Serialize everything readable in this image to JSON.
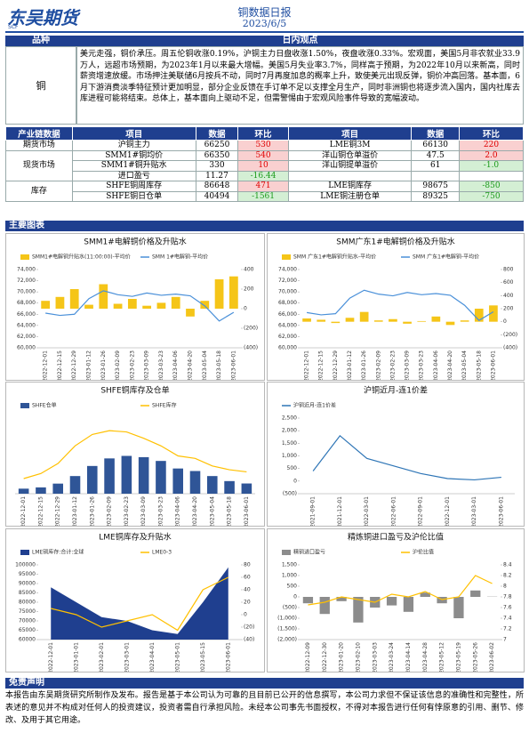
{
  "header": {
    "logo": "东吴期货",
    "logo_sub": "SCF",
    "title": "铜数据日报",
    "date": "2023/6/5"
  },
  "view": {
    "header": [
      "品种",
      "日内观点"
    ],
    "variety": "铜",
    "text": "美元走强，铜价承压。周五伦铜收涨0.19%，沪铜主力日盘收涨1.50%，夜盘收涨0.33%。宏观面，美国5月非农就业33.9万人，远超市场预期，为2023年1月以来最大增幅。美国5月失业率3.7%，同样高于预期，为2022年10月以来新高，同时薪资增速放缓。市场押注美联储6月按兵不动，同时7月再度加息的概率上升，致使美元出现反弹，铜价冲高回落。基本面，6月下游消费淡季特征预计更加明显，部分企业反馈在手订单不足以支撑全月生产，同时非洲铜也将逐步流入国内，国内社库去库进程可能将结束。总体上，基本面向上驱动不足，但需警惕由于宏观风险事件导致的宽幅波动。"
  },
  "table": {
    "header": [
      "产业链数据",
      "项目",
      "数据",
      "环比",
      "项目",
      "数据",
      "环比"
    ],
    "groups": [
      {
        "label": "期货市场",
        "rows": [
          [
            "沪铜主力",
            "66250",
            "530",
            "LME铜3M",
            "66130",
            "220"
          ]
        ]
      },
      {
        "label": "现货市场",
        "rows": [
          [
            "SMM1#铜均价",
            "66350",
            "540",
            "洋山铜仓单溢价",
            "47.5",
            "2.0"
          ],
          [
            "SMM1#铜升贴水",
            "330",
            "10",
            "洋山铜提单溢价",
            "61",
            "-1.0"
          ],
          [
            "进口盈亏",
            "11.27",
            "-16.44"
          ]
        ]
      },
      {
        "label": "库存",
        "rows": [
          [
            "SHFE铜周库存",
            "86648",
            "471",
            "LME铜库存",
            "98675",
            "-850"
          ],
          [
            "SHFE铜日仓单",
            "40494",
            "-1561",
            "LME铜注册仓单",
            "89325",
            "-750"
          ]
        ]
      }
    ]
  },
  "charts_heading": "主要图表",
  "chart_data": [
    {
      "type": "bar-line",
      "title": "SMM1#电解铜价格及升贴水",
      "categories": [
        "2022-12-01",
        "2022-12-15",
        "2022-12-29",
        "2023-01-12",
        "2023-01-26",
        "2023-02-09",
        "2023-02-23",
        "2023-03-09",
        "2023-03-23",
        "2023-04-06",
        "2023-04-20",
        "2023-05-04",
        "2023-05-18",
        "2023-06-01"
      ],
      "series": [
        {
          "name": "SMM1#电解铜升贴水(11:00:00)-平均价",
          "color": "#f5c518",
          "kind": "bar",
          "axis": "y2",
          "values": [
            80,
            120,
            200,
            40,
            250,
            50,
            100,
            30,
            60,
            120,
            -80,
            80,
            300,
            330
          ]
        },
        {
          "name": "SMM 1#电解铜-平均价",
          "color": "#4a90d9",
          "kind": "line",
          "axis": "y",
          "values": [
            66200,
            65800,
            66000,
            68800,
            70200,
            69500,
            69200,
            69800,
            69400,
            69600,
            69300,
            67500,
            64800,
            66350
          ]
        }
      ],
      "ylim": [
        60000,
        74000
      ],
      "yticks": [
        {
          "value": 60000,
          "label": "60,000"
        },
        {
          "value": 62000,
          "label": "62,000"
        },
        {
          "value": 64000,
          "label": "64,000"
        },
        {
          "value": 66000,
          "label": "66,000"
        },
        {
          "value": 68000,
          "label": "68,000"
        },
        {
          "value": 70000,
          "label": "70,000"
        },
        {
          "value": 72000,
          "label": "72,000"
        },
        {
          "value": 74000,
          "label": "74,000"
        }
      ],
      "y2lim": [
        -400,
        400
      ],
      "y2ticks": [
        {
          "value": -400,
          "label": "(400)"
        },
        {
          "value": -200,
          "label": "(200)"
        },
        0,
        200,
        400
      ]
    },
    {
      "type": "bar-line",
      "title": "SMM广东1#电解铜价格及升贴水",
      "categories": [
        "2022-12-01",
        "2022-12-15",
        "2022-12-29",
        "2023-01-12",
        "2023-01-26",
        "2023-02-09",
        "2023-02-23",
        "2023-03-09",
        "2023-03-23",
        "2023-04-06",
        "2023-04-20",
        "2023-05-04",
        "2023-05-18",
        "2023-06-01"
      ],
      "series": [
        {
          "name": "SMM 广东1#电解铜升贴水-平均价",
          "color": "#f5c518",
          "kind": "bar",
          "axis": "y2",
          "values": [
            50,
            30,
            -20,
            60,
            150,
            20,
            40,
            -30,
            10,
            80,
            -50,
            20,
            200,
            250
          ]
        },
        {
          "name": "SMM 广东1#电解铜-平均价",
          "color": "#4a90d9",
          "kind": "line",
          "axis": "y",
          "values": [
            66300,
            65900,
            66100,
            68900,
            70300,
            69600,
            69300,
            69900,
            69500,
            69700,
            69400,
            67600,
            64900,
            66450
          ]
        }
      ],
      "ylim": [
        60000,
        74000
      ],
      "yticks": [
        {
          "value": 60000,
          "label": "60,000"
        },
        {
          "value": 62000,
          "label": "62,000"
        },
        {
          "value": 64000,
          "label": "64,000"
        },
        {
          "value": 66000,
          "label": "66,000"
        },
        {
          "value": 68000,
          "label": "68,000"
        },
        {
          "value": 70000,
          "label": "70,000"
        },
        {
          "value": 72000,
          "label": "72,000"
        },
        {
          "value": 74000,
          "label": "74,000"
        }
      ],
      "y2lim": [
        -400,
        800
      ],
      "y2ticks": [
        {
          "value": -400,
          "label": "(400)"
        },
        {
          "value": -200,
          "label": "(200)"
        },
        0,
        200,
        400,
        600,
        800
      ]
    },
    {
      "type": "bar-line",
      "title": "SHFE铜库存及仓单",
      "categories": [
        "2022-12-01",
        "2022-12-15",
        "2022-12-29",
        "2023-01-12",
        "2023-01-26",
        "2023-02-09",
        "2023-02-23",
        "2023-03-09",
        "2023-03-23",
        "2023-04-06",
        "2023-04-20",
        "2023-05-04",
        "2023-05-18",
        "2023-06-01"
      ],
      "series": [
        {
          "name": "SHFE仓单",
          "color": "#2f5597",
          "kind": "bar",
          "axis": "y",
          "values": [
            20000,
            25000,
            40000,
            70000,
            110000,
            140000,
            150000,
            145000,
            130000,
            100000,
            90000,
            70000,
            50000,
            40494
          ]
        },
        {
          "name": "SHFE库存",
          "color": "#ffc000",
          "kind": "line",
          "axis": "y",
          "values": [
            60000,
            80000,
            120000,
            190000,
            235000,
            250000,
            245000,
            220000,
            190000,
            150000,
            140000,
            110000,
            95000,
            86648
          ]
        }
      ],
      "ylim": [
        0,
        300000
      ]
    },
    {
      "type": "bar-line",
      "title": "沪铜近月-连1价差",
      "categories": [
        "2021-09-01",
        "2021-12-01",
        "2022-03-01",
        "2022-06-01",
        "2022-09-01",
        "2022-12-01",
        "2023-03-01",
        "2023-06-01"
      ],
      "series": [
        {
          "name": "沪铜近月-连1价差",
          "color": "#2e75b6",
          "kind": "line",
          "axis": "y",
          "values": [
            400,
            1800,
            900,
            600,
            300,
            100,
            50,
            150
          ]
        }
      ],
      "ylim": [
        -500,
        2500
      ],
      "yticks": [
        {
          "value": -500,
          "label": "(500)"
        },
        0,
        500,
        {
          "value": 1000,
          "label": "1,000"
        },
        {
          "value": 1500,
          "label": "1,500"
        },
        {
          "value": 2000,
          "label": "2,000"
        },
        {
          "value": 2500,
          "label": "2,500"
        }
      ]
    },
    {
      "type": "bar-line",
      "title": "LME铜库存及升贴水",
      "categories": [
        "2022-12-01",
        "2023-01-01",
        "2023-02-01",
        "2023-03-01",
        "2023-04-01",
        "2023-05-01",
        "2023-05-15",
        "2023-06-01"
      ],
      "series": [
        {
          "name": "LME铜库存:合计:全球",
          "color": "#1f3f8f",
          "kind": "area",
          "axis": "y",
          "values": [
            88000,
            80000,
            72000,
            70000,
            65000,
            63000,
            80000,
            98675
          ]
        },
        {
          "name": "LME0-3",
          "color": "#ffc000",
          "kind": "line",
          "axis": "y2",
          "values": [
            10,
            0,
            -20,
            -10,
            0,
            -25,
            40,
            60
          ]
        }
      ],
      "ylim": [
        60000,
        100000
      ],
      "yticks": [
        {
          "value": 60000,
          "label": "60000"
        },
        {
          "value": 65000,
          "label": "65000"
        },
        {
          "value": 70000,
          "label": "70000"
        },
        {
          "value": 75000,
          "label": "75000"
        },
        {
          "value": 80000,
          "label": "80000"
        },
        {
          "value": 85000,
          "label": "85000"
        },
        {
          "value": 90000,
          "label": "90000"
        },
        {
          "value": 95000,
          "label": "95000"
        },
        {
          "value": 100000,
          "label": "100000"
        }
      ],
      "y2lim": [
        -40,
        80
      ],
      "y2ticks": [
        {
          "value": -40,
          "label": "(40)"
        },
        {
          "value": -20,
          "label": "(20)"
        },
        0,
        20,
        40,
        60,
        80
      ]
    },
    {
      "type": "bar-line",
      "title": "精炼铜进口盈亏及沪伦比值",
      "categories": [
        "2022-12-09",
        "2022-12-30",
        "2023-01-20",
        "2023-02-10",
        "2023-03-03",
        "2023-03-24",
        "2023-04-14",
        "2023-04-28",
        "2023-05-12",
        "2023-05-19",
        "2023-05-26",
        "2023-06-02"
      ],
      "series": [
        {
          "name": "精铜进口盈亏",
          "color": "#8c8c8c",
          "kind": "bar",
          "axis": "y",
          "values": [
            -300,
            -800,
            -200,
            -1200,
            -500,
            -400,
            -700,
            200,
            -300,
            -1000,
            300,
            11.27
          ]
        },
        {
          "name": "沪伦比值",
          "color": "#ffc000",
          "kind": "line",
          "axis": "y2",
          "values": [
            7.65,
            7.7,
            7.8,
            7.75,
            7.7,
            7.85,
            7.8,
            7.9,
            7.75,
            7.8,
            8.2,
            8.05
          ]
        }
      ],
      "ylim": [
        -2000,
        1500
      ],
      "yticks": [
        {
          "value": -2000,
          "label": "(2,000)"
        },
        {
          "value": -1500,
          "label": "(1,500)"
        },
        {
          "value": -1000,
          "label": "(1,000)"
        },
        {
          "value": -500,
          "label": "(500)"
        },
        0,
        500,
        {
          "value": 1000,
          "label": "1,000"
        },
        {
          "value": 1500,
          "label": "1,500"
        }
      ],
      "y2lim": [
        7,
        8.4
      ],
      "y2ticks": [
        7,
        7.2,
        7.4,
        7.6,
        7.8,
        8,
        8.2,
        8.4
      ]
    }
  ],
  "disclaimer": {
    "title": "免责声明",
    "text": "本报告由东吴期货研究所制作及发布。报告是基于本公司认为可靠的且目前已公开的信息撰写，本公司力求但不保证该信息的准确性和完整性，所表述的意见并不构成对任何人的投资建议，投资者需自行承担风险。未经本公司事先书面授权，不得对本报告进行任何有悖原意的引用、删节、修改、及用于其它用途。"
  }
}
